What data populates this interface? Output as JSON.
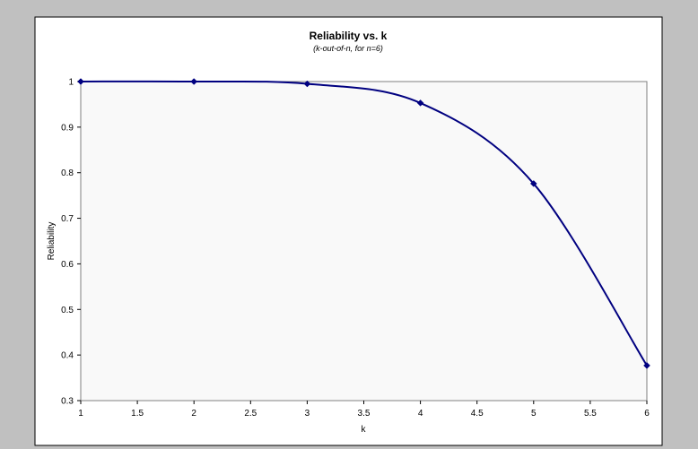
{
  "chart_data": {
    "type": "line",
    "title": "Reliability vs. k",
    "subtitle": "(k-out-of-n, for n=6)",
    "xlabel": "k",
    "ylabel": "Reliability",
    "xlim": [
      1,
      6
    ],
    "ylim": [
      0.3,
      1
    ],
    "x_ticks": [
      "1",
      "1.5",
      "2",
      "2.5",
      "3",
      "3.5",
      "4",
      "4.5",
      "5",
      "5.5",
      "6"
    ],
    "y_ticks": [
      "1",
      "0.9",
      "0.8",
      "0.7",
      "0.6",
      "0.5",
      "0.4",
      "0.3"
    ],
    "grid": false,
    "smooth": true,
    "series": [
      {
        "marker": "diamond",
        "color": "#000080",
        "x": [
          1,
          2,
          3,
          4,
          5,
          6
        ],
        "y": [
          1.0,
          1.0,
          0.995,
          0.953,
          0.776,
          0.377
        ]
      }
    ]
  },
  "colors": {
    "outer_background": "#c0c0c0",
    "chart_area": "#ffffff",
    "plot_area": "#f9f9f9",
    "plot_border": "#808080",
    "series": "#000080"
  }
}
